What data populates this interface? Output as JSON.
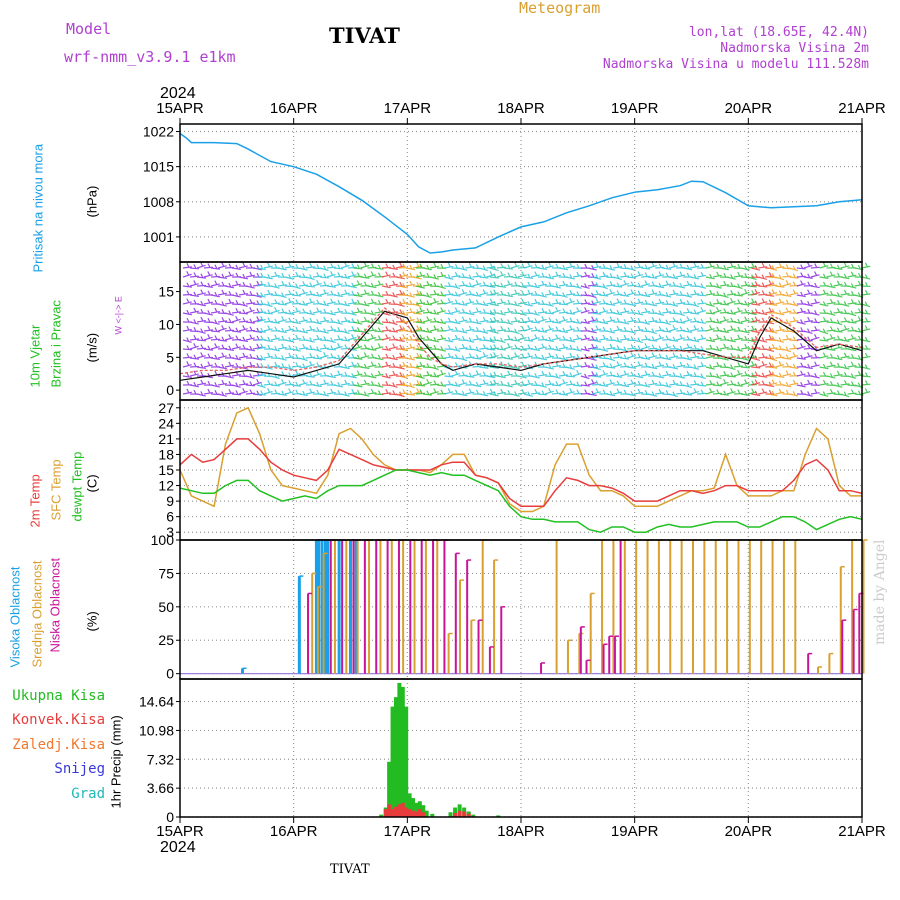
{
  "header": {
    "model_label": "Model",
    "model_name": "wrf-nmm_v3.9.1 e1km",
    "title": "TIVAT",
    "meteogram_label": "Meteogram",
    "lonlat": "lon,lat (18.65E, 42.4N)",
    "altitude": "Nadmorska Visina 2m",
    "model_altitude": "Nadmorska Visina u modelu 111.528m",
    "year_top": "2024",
    "year_bottom": "2024",
    "footer_title": "TIVAT",
    "watermark": "made by Angel"
  },
  "colors": {
    "pressure": "#1aa0e8",
    "temp2m": "#e83c3c",
    "sfc": "#d9a030",
    "dewpt": "#22c022",
    "cloud_high": "#1aa0e8",
    "cloud_mid": "#d9a030",
    "cloud_low": "#c8149a",
    "precip_total": "#22bb22",
    "precip_conv": "#e83c3c",
    "purple": "#b040d0"
  },
  "panel_labels": {
    "pressure": {
      "name": "Pritisak na nivou mora",
      "unit": "(hPa)"
    },
    "wind": {
      "name1": "10m Vjetar",
      "name2": "Brzina i Pravac",
      "unit": "(m/s)",
      "compass": "W <-|-> E"
    },
    "temp": {
      "t2m": "2m Temp",
      "sfc": "SFC Temp",
      "dew": "dewpt Temp",
      "unit": "(C)"
    },
    "cloud": {
      "high": "Visoka Oblacnost",
      "mid": "Srednja Oblacnost",
      "low": "Niska Oblacnost",
      "unit": "(%)"
    },
    "precip": {
      "unit": "1hr Precip (mm)",
      "legend": [
        "Ukupna Kisa",
        "Konvek.Kisa",
        "Zaledj.Kisa",
        "Snijeg",
        "Grad"
      ],
      "legend_colors": [
        "#22bb22",
        "#e83c3c",
        "#f07830",
        "#3838d8",
        "#20b8b8"
      ]
    }
  },
  "chart_data": [
    {
      "type": "line",
      "panel": "pressure",
      "xlabel": "",
      "ylabel": "(hPa)",
      "xticks": [
        "15APR",
        "16APR",
        "17APR",
        "18APR",
        "19APR",
        "20APR",
        "21APR"
      ],
      "yticks": [
        1001,
        1008,
        1015,
        1022
      ],
      "ylim": [
        996,
        1023.5
      ],
      "x": [
        0,
        0.05,
        0.1,
        0.3,
        0.5,
        0.6,
        0.8,
        1.0,
        1.2,
        1.4,
        1.6,
        1.8,
        2.0,
        2.1,
        2.2,
        2.3,
        2.4,
        2.6,
        2.8,
        3.0,
        3.2,
        3.4,
        3.6,
        3.8,
        4.0,
        4.2,
        4.4,
        4.5,
        4.6,
        4.8,
        5.0,
        5.2,
        5.4,
        5.6,
        5.8,
        6.0
      ],
      "series": [
        {
          "values": [
            1021.6,
            1020.8,
            1019.8,
            1019.8,
            1019.6,
            1018.5,
            1016.0,
            1015.0,
            1013.5,
            1011.0,
            1008.3,
            1005.0,
            1001.5,
            999.0,
            997.8,
            998.0,
            998.4,
            998.8,
            1001.0,
            1003.0,
            1004.0,
            1005.8,
            1007.2,
            1008.8,
            1009.9,
            1010.4,
            1011.2,
            1012.1,
            1012.0,
            1009.8,
            1007.2,
            1006.8,
            1007.0,
            1007.2,
            1008.0,
            1008.4
          ]
        }
      ]
    },
    {
      "type": "line",
      "panel": "wind",
      "xlabel": "",
      "ylabel": "(m/s)",
      "yticks": [
        0,
        5,
        10,
        15
      ],
      "ylim": [
        -1.5,
        19.5
      ],
      "x": [
        0,
        0.2,
        0.4,
        0.6,
        0.8,
        1.0,
        1.2,
        1.4,
        1.6,
        1.8,
        2.0,
        2.1,
        2.2,
        2.3,
        2.4,
        2.6,
        2.8,
        3.0,
        3.2,
        3.4,
        3.6,
        3.8,
        4.0,
        4.2,
        4.4,
        4.6,
        4.8,
        5.0,
        5.1,
        5.2,
        5.4,
        5.6,
        5.8,
        6.0
      ],
      "series": [
        {
          "values": [
            1.5,
            2.0,
            2.5,
            3.0,
            2.5,
            2.0,
            3.0,
            4.0,
            8.0,
            12.0,
            11.0,
            8.0,
            6.0,
            4.0,
            3.0,
            4.0,
            3.5,
            3.0,
            4.0,
            4.5,
            5.0,
            5.5,
            6.0,
            6.0,
            6.0,
            6.0,
            5.0,
            4.0,
            8.0,
            11.0,
            9.0,
            6.0,
            7.0,
            6.0
          ]
        },
        {
          "values": [
            2.5,
            3.0,
            3.0,
            3.5,
            3.5,
            3.0,
            3.5,
            4.5,
            8.5,
            12.5,
            10.0,
            7.0,
            5.0,
            4.0,
            3.5,
            4.0,
            4.0,
            3.5,
            4.0,
            4.5,
            5.0,
            5.5,
            6.0,
            6.0,
            6.0,
            5.5,
            5.0,
            5.0,
            9.0,
            11.5,
            9.5,
            6.5,
            7.0,
            6.5
          ]
        }
      ]
    },
    {
      "type": "line",
      "panel": "temp",
      "xlabel": "",
      "ylabel": "(C)",
      "yticks": [
        3,
        6,
        9,
        12,
        15,
        18,
        21,
        24,
        27
      ],
      "ylim": [
        1.5,
        28.5
      ],
      "x": [
        0,
        0.1,
        0.2,
        0.3,
        0.4,
        0.5,
        0.6,
        0.7,
        0.8,
        0.9,
        1.0,
        1.1,
        1.2,
        1.3,
        1.4,
        1.5,
        1.6,
        1.7,
        1.8,
        1.9,
        2.0,
        2.1,
        2.2,
        2.3,
        2.4,
        2.5,
        2.6,
        2.7,
        2.8,
        2.9,
        3.0,
        3.1,
        3.2,
        3.3,
        3.4,
        3.5,
        3.6,
        3.7,
        3.8,
        3.9,
        4.0,
        4.1,
        4.2,
        4.3,
        4.4,
        4.5,
        4.6,
        4.7,
        4.8,
        4.9,
        5.0,
        5.1,
        5.2,
        5.3,
        5.4,
        5.5,
        5.6,
        5.7,
        5.8,
        5.9,
        6.0
      ],
      "series": [
        {
          "name": "2m Temp",
          "values": [
            16,
            18,
            16.5,
            17,
            19,
            21,
            21,
            19,
            16.5,
            15,
            14,
            13.5,
            13,
            15,
            19,
            18,
            17,
            16,
            15.5,
            15,
            15,
            15,
            15,
            16,
            16.5,
            16.5,
            14,
            13.5,
            12.5,
            9.5,
            8,
            8,
            8,
            11,
            13.5,
            13,
            12,
            12,
            11.5,
            10.5,
            9,
            9,
            9,
            10,
            11,
            11,
            10.5,
            11,
            12,
            12,
            11,
            11,
            11,
            11,
            13,
            16,
            17,
            15,
            11,
            11,
            10.5
          ]
        },
        {
          "name": "SFC Temp",
          "values": [
            15,
            10,
            9,
            8,
            20,
            26,
            27,
            22,
            15,
            12,
            11.5,
            11,
            10.5,
            14,
            22,
            23,
            21,
            18,
            16,
            15,
            15,
            15,
            14.5,
            16,
            18,
            18,
            14,
            13.5,
            12.5,
            8.5,
            7,
            7,
            8,
            16,
            20,
            20,
            14,
            11,
            11,
            10,
            8,
            8,
            8,
            9,
            10,
            11,
            11,
            11.5,
            18,
            12,
            10,
            10,
            10,
            11,
            11,
            18,
            23,
            21,
            12,
            10,
            10
          ]
        },
        {
          "name": "dewpt Temp",
          "values": [
            11.5,
            11,
            10.5,
            10.5,
            12,
            13,
            13,
            11,
            10,
            9,
            9.5,
            10,
            9.5,
            11,
            12,
            12,
            12,
            13,
            14,
            15,
            15,
            14.5,
            14,
            14.5,
            14,
            14,
            13,
            12,
            11,
            8,
            6,
            5.5,
            5.5,
            5,
            5,
            5,
            3.5,
            3,
            4,
            4,
            3,
            3,
            4,
            4.5,
            4,
            4,
            4.5,
            5,
            5,
            5,
            4,
            4,
            5,
            6,
            6,
            5,
            3.5,
            4.5,
            5.5,
            6,
            5.5
          ]
        }
      ]
    },
    {
      "type": "bar",
      "panel": "cloud",
      "xlabel": "",
      "ylabel": "(%)",
      "yticks": [
        0,
        25,
        50,
        75,
        100
      ],
      "ylim": [
        -4,
        100
      ],
      "series": [
        {
          "name": "Visoka Oblacnost",
          "points": [
            [
              0.55,
              4
            ],
            [
              1.05,
              73
            ],
            [
              1.2,
              100
            ],
            [
              1.22,
              100
            ],
            [
              1.25,
              100
            ],
            [
              1.28,
              100
            ],
            [
              1.3,
              100
            ],
            [
              1.4,
              100
            ],
            [
              1.5,
              100
            ],
            [
              1.55,
              100
            ]
          ]
        },
        {
          "name": "Srednja Oblacnost",
          "points": [
            [
              1.15,
              75
            ],
            [
              1.2,
              65
            ],
            [
              1.25,
              90
            ],
            [
              1.35,
              100
            ],
            [
              1.45,
              100
            ],
            [
              1.55,
              100
            ],
            [
              1.65,
              100
            ],
            [
              1.75,
              100
            ],
            [
              1.85,
              100
            ],
            [
              1.95,
              100
            ],
            [
              2.05,
              100
            ],
            [
              2.15,
              100
            ],
            [
              2.25,
              100
            ],
            [
              2.35,
              30
            ],
            [
              2.45,
              70
            ],
            [
              2.55,
              40
            ],
            [
              2.65,
              100
            ],
            [
              2.75,
              85
            ],
            [
              3.3,
              100
            ],
            [
              3.4,
              25
            ],
            [
              3.5,
              30
            ],
            [
              3.6,
              60
            ],
            [
              3.7,
              100
            ],
            [
              3.8,
              100
            ],
            [
              3.9,
              100
            ],
            [
              4.0,
              100
            ],
            [
              4.1,
              100
            ],
            [
              4.2,
              100
            ],
            [
              4.3,
              100
            ],
            [
              4.4,
              100
            ],
            [
              4.5,
              100
            ],
            [
              4.6,
              100
            ],
            [
              4.7,
              100
            ],
            [
              4.8,
              100
            ],
            [
              4.9,
              100
            ],
            [
              5.0,
              100
            ],
            [
              5.1,
              100
            ],
            [
              5.2,
              100
            ],
            [
              5.3,
              100
            ],
            [
              5.4,
              100
            ],
            [
              5.6,
              5
            ],
            [
              5.7,
              15
            ],
            [
              5.8,
              80
            ],
            [
              5.9,
              100
            ],
            [
              6.0,
              100
            ]
          ]
        },
        {
          "name": "Niska Oblacnost",
          "points": [
            [
              1.1,
              60
            ],
            [
              1.3,
              100
            ],
            [
              1.4,
              100
            ],
            [
              1.5,
              100
            ],
            [
              1.6,
              100
            ],
            [
              1.7,
              100
            ],
            [
              1.8,
              100
            ],
            [
              1.9,
              100
            ],
            [
              2.0,
              100
            ],
            [
              2.1,
              100
            ],
            [
              2.2,
              100
            ],
            [
              2.3,
              100
            ],
            [
              2.4,
              90
            ],
            [
              2.5,
              85
            ],
            [
              2.6,
              40
            ],
            [
              2.7,
              20
            ],
            [
              2.8,
              50
            ],
            [
              3.15,
              8
            ],
            [
              3.5,
              35
            ],
            [
              3.55,
              10
            ],
            [
              3.7,
              22
            ],
            [
              3.75,
              28
            ],
            [
              3.8,
              28
            ],
            [
              3.85,
              100
            ],
            [
              5.5,
              15
            ],
            [
              5.8,
              40
            ],
            [
              5.9,
              48
            ],
            [
              5.95,
              60
            ]
          ]
        }
      ]
    },
    {
      "type": "bar",
      "panel": "precip",
      "xlabel": "",
      "ylabel": "1hr Precip (mm)",
      "yticks": [
        0,
        3.66,
        7.32,
        10.98,
        14.64
      ],
      "ylim": [
        0,
        17.5
      ],
      "series": [
        {
          "name": "Ukupna Kisa",
          "points": [
            [
              1.77,
              0.3
            ],
            [
              1.81,
              1.2
            ],
            [
              1.84,
              7.0
            ],
            [
              1.87,
              14.0
            ],
            [
              1.9,
              15.2
            ],
            [
              1.93,
              17.0
            ],
            [
              1.96,
              16.5
            ],
            [
              1.99,
              14.0
            ],
            [
              2.02,
              3.0
            ],
            [
              2.05,
              2.4
            ],
            [
              2.08,
              1.8
            ],
            [
              2.11,
              2.0
            ],
            [
              2.14,
              1.5
            ],
            [
              2.17,
              0.8
            ],
            [
              2.22,
              0.4
            ],
            [
              2.38,
              0.6
            ],
            [
              2.42,
              1.2
            ],
            [
              2.46,
              1.6
            ],
            [
              2.5,
              1.2
            ],
            [
              2.54,
              0.7
            ],
            [
              2.58,
              0.3
            ],
            [
              2.8,
              0.2
            ]
          ]
        },
        {
          "name": "Konvek.Kisa",
          "points": [
            [
              1.81,
              1.0
            ],
            [
              1.84,
              1.6
            ],
            [
              1.87,
              1.0
            ],
            [
              1.9,
              1.3
            ],
            [
              1.93,
              1.6
            ],
            [
              1.96,
              1.8
            ],
            [
              1.99,
              1.2
            ],
            [
              2.02,
              1.0
            ],
            [
              2.05,
              0.8
            ],
            [
              2.08,
              0.7
            ],
            [
              2.11,
              1.0
            ],
            [
              2.14,
              0.6
            ],
            [
              2.42,
              0.5
            ],
            [
              2.46,
              0.8
            ],
            [
              2.5,
              0.7
            ],
            [
              2.54,
              0.4
            ]
          ]
        }
      ]
    }
  ]
}
